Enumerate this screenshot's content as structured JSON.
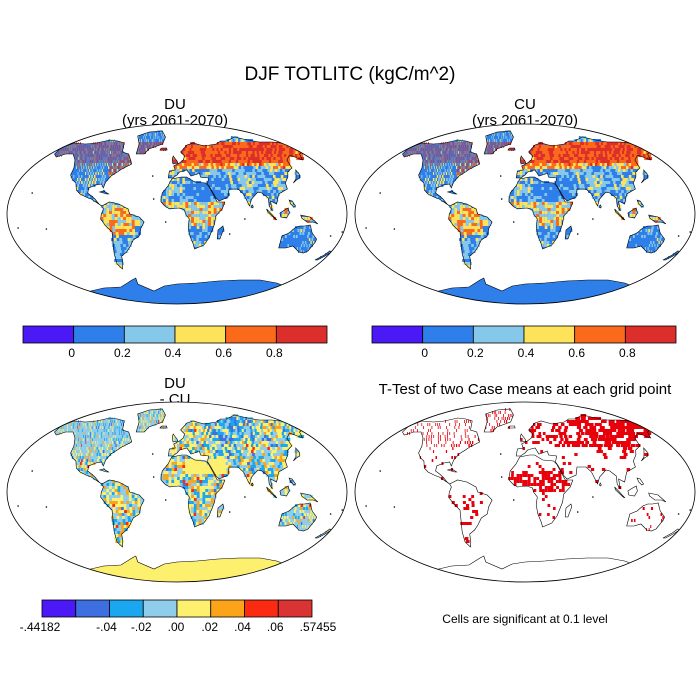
{
  "figure": {
    "title": "DJF TOTLITC (kgC/m^2)"
  },
  "panels": [
    {
      "id": "du",
      "title_line1": "DU",
      "title_line2": "(yrs 2061-2070)",
      "kind": "field"
    },
    {
      "id": "cu",
      "title_line1": "CU",
      "title_line2": "(yrs 2061-2070)",
      "kind": "field"
    },
    {
      "id": "diff",
      "title_line1": "DU",
      "title_line2": "- CU",
      "kind": "difference"
    },
    {
      "id": "ttest",
      "title_line1": "T-Test of two Case means at each grid point",
      "title_line2": "",
      "kind": "significance"
    }
  ],
  "colorbars": {
    "field": {
      "colors": [
        "#4a19f5",
        "#2f7fea",
        "#86c8ea",
        "#fde35a",
        "#fb6a1a",
        "#dc2f2b"
      ],
      "labels": [
        "0",
        "0.2",
        "0.4",
        "0.6",
        "0.8"
      ]
    },
    "difference": {
      "colors": [
        "#4a19f5",
        "#3e6fe0",
        "#1aa7f0",
        "#8fcdea",
        "#fdf06e",
        "#fba41a",
        "#fb2b12",
        "#d93333"
      ],
      "labels": [
        "-.44182",
        "-.04",
        "-.02",
        ".00",
        ".02",
        ".04",
        ".06",
        ".57455"
      ]
    }
  },
  "significance_note": "Cells are significant at 0.1 level",
  "significance_level": 0.1,
  "map_colors": {
    "ocean": "#ffffff",
    "field_base_land": "#2f7fea",
    "difference_base_land": "#8fcdea",
    "difference_antarctica": "#fdf06e",
    "field_antarctica": "#2f7fea",
    "significant_cell": "#e8000b",
    "coastline": "#000000"
  }
}
